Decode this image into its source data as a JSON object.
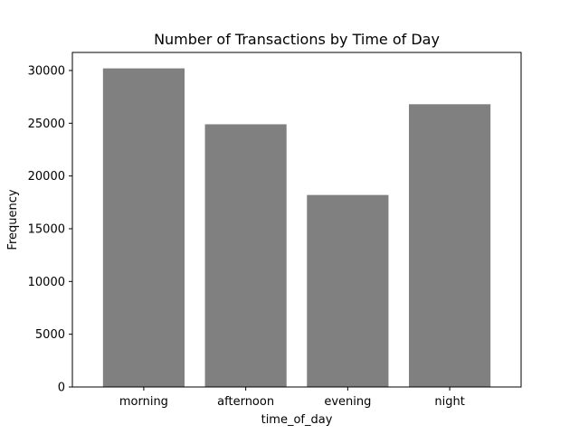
{
  "chart_data": {
    "type": "bar",
    "title": "Number of Transactions by Time of Day",
    "xlabel": "time_of_day",
    "ylabel": "Frequency",
    "categories": [
      "morning",
      "afternoon",
      "evening",
      "night"
    ],
    "values": [
      30200,
      24900,
      18200,
      26800
    ],
    "ylim": [
      0,
      31710
    ],
    "yticks": [
      0,
      5000,
      10000,
      15000,
      20000,
      25000,
      30000
    ],
    "grid": false,
    "legend": "none",
    "colors": {
      "bar": "#808080",
      "axis": "#000000",
      "background": "#ffffff"
    }
  }
}
